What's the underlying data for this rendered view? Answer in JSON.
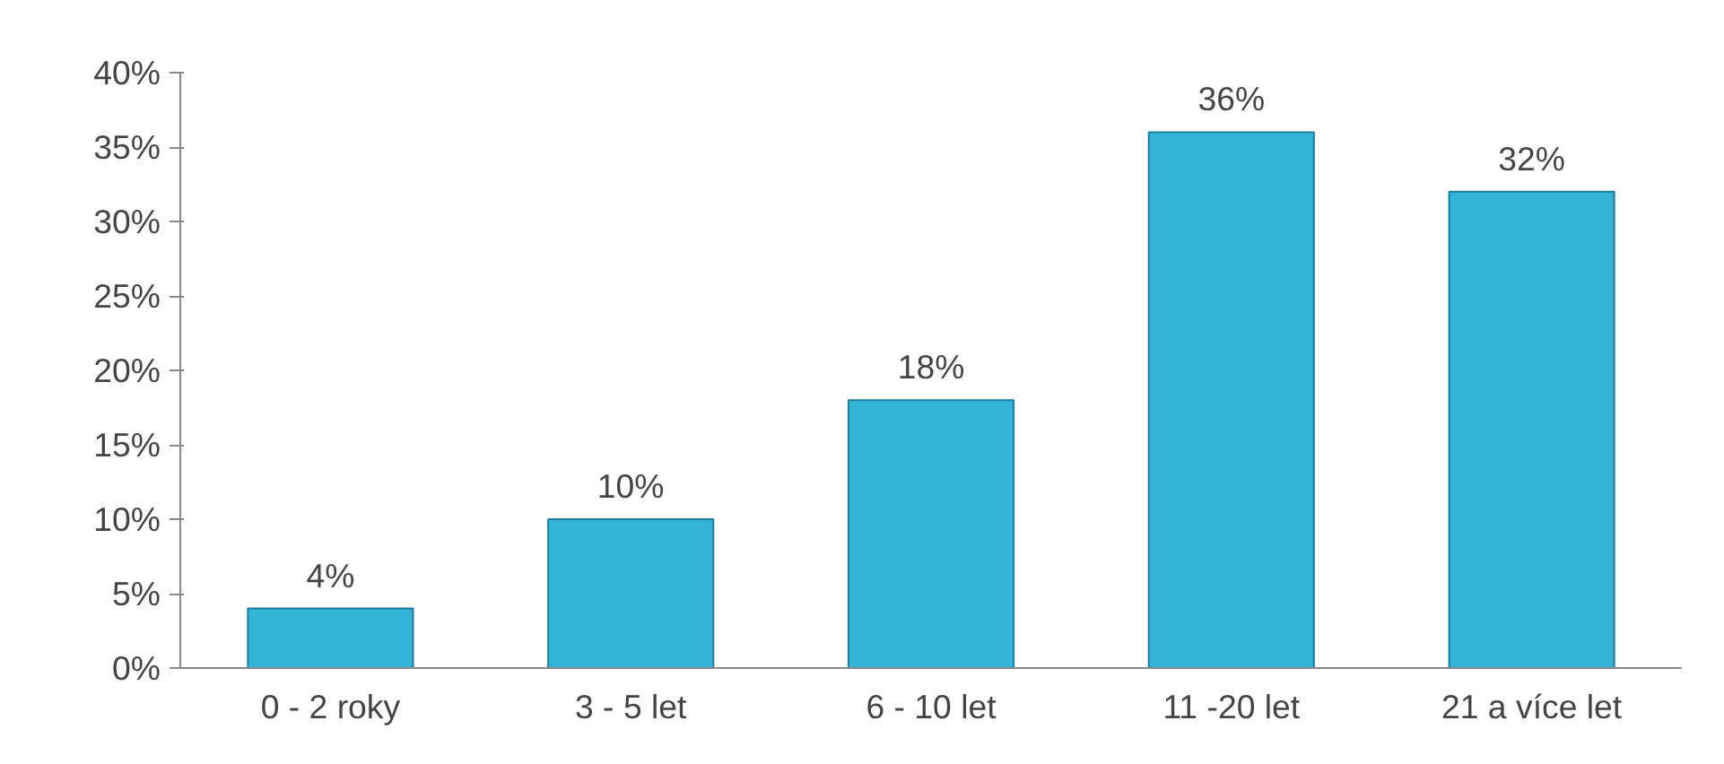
{
  "chart_data": {
    "type": "bar",
    "categories": [
      "0 - 2 roky",
      "3 - 5 let",
      "6 - 10 let",
      "11 -20 let",
      "21 a více let"
    ],
    "values": [
      4,
      10,
      18,
      36,
      32
    ],
    "value_labels": [
      "4%",
      "10%",
      "18%",
      "36%",
      "32%"
    ],
    "color": "#33b4d6",
    "ylim": [
      0,
      40
    ],
    "yticks": [
      {
        "value": 0,
        "label": "0%"
      },
      {
        "value": 5,
        "label": "5%"
      },
      {
        "value": 10,
        "label": "10%"
      },
      {
        "value": 15,
        "label": "15%"
      },
      {
        "value": 20,
        "label": "20%"
      },
      {
        "value": 25,
        "label": "25%"
      },
      {
        "value": 30,
        "label": "30%"
      },
      {
        "value": 35,
        "label": "35%"
      },
      {
        "value": 40,
        "label": "40%"
      }
    ],
    "grid": false
  }
}
